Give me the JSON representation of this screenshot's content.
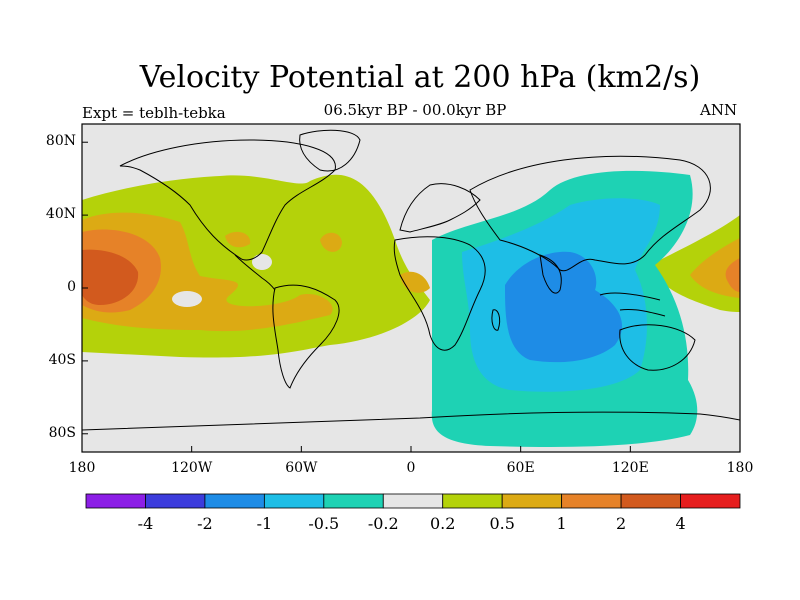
{
  "title": "Velocity Potential at 200 hPa (km2/s)",
  "subtitle_left": "Expt = teblh-tebka",
  "subtitle_center": "06.5kyr BP - 00.0kyr BP",
  "subtitle_right": "ANN",
  "colors": {
    "neutral": "#e6e6e6",
    "plus_0_2": "#b4d20a",
    "plus_0_5": "#dcaa14",
    "plus_1": "#e68228",
    "plus_2": "#d25a1e",
    "minus_0_2": "#1ed2b4",
    "minus_0_5": "#1ebee6",
    "minus_1": "#1e8ce6",
    "coast": "#000000"
  },
  "legend": {
    "colors": [
      "#8c1ee6",
      "#3c3cdc",
      "#1e8ce6",
      "#1ebee6",
      "#1ed2b4",
      "#e6e6e6",
      "#b4d20a",
      "#dcaa14",
      "#e68228",
      "#d25a1e",
      "#e61e1e"
    ],
    "labels": [
      "-4",
      "-2",
      "-1",
      "-0.5",
      "-0.2",
      "0.2",
      "0.5",
      "1",
      "2",
      "4"
    ]
  },
  "chart_data": {
    "type": "heatmap",
    "subtype": "filled contour map",
    "title": "Velocity Potential at 200 hPa (km2/s)",
    "experiment": "teblh-tebka",
    "period": "06.5kyr BP - 00.0kyr BP",
    "season": "ANN",
    "x_ticks": [
      "180",
      "120W",
      "60W",
      "0",
      "60E",
      "120E",
      "180"
    ],
    "y_ticks": [
      "80N",
      "40N",
      "0",
      "40S",
      "80S"
    ],
    "lon_range": [
      -180,
      180
    ],
    "lat_range": [
      -90,
      90
    ],
    "contour_levels": [
      -4,
      -2,
      -1,
      -0.5,
      -0.2,
      0.2,
      0.5,
      1,
      2,
      4
    ],
    "features": [
      {
        "region": "Indian Ocean / S Asia",
        "lon": 80,
        "lat": -10,
        "value_range": "-1 to -0.5",
        "sign": "negative minimum"
      },
      {
        "region": "Eastern hemisphere 20E-160E",
        "value_range": "-0.5 to -0.2",
        "sign": "negative"
      },
      {
        "region": "Central Pacific",
        "lon": -170,
        "lat": 0,
        "value_range": "1 to 2",
        "sign": "positive maximum"
      },
      {
        "region": "Americas / Atlantic",
        "value_range": "0.2 to 0.5",
        "sign": "positive"
      }
    ]
  }
}
